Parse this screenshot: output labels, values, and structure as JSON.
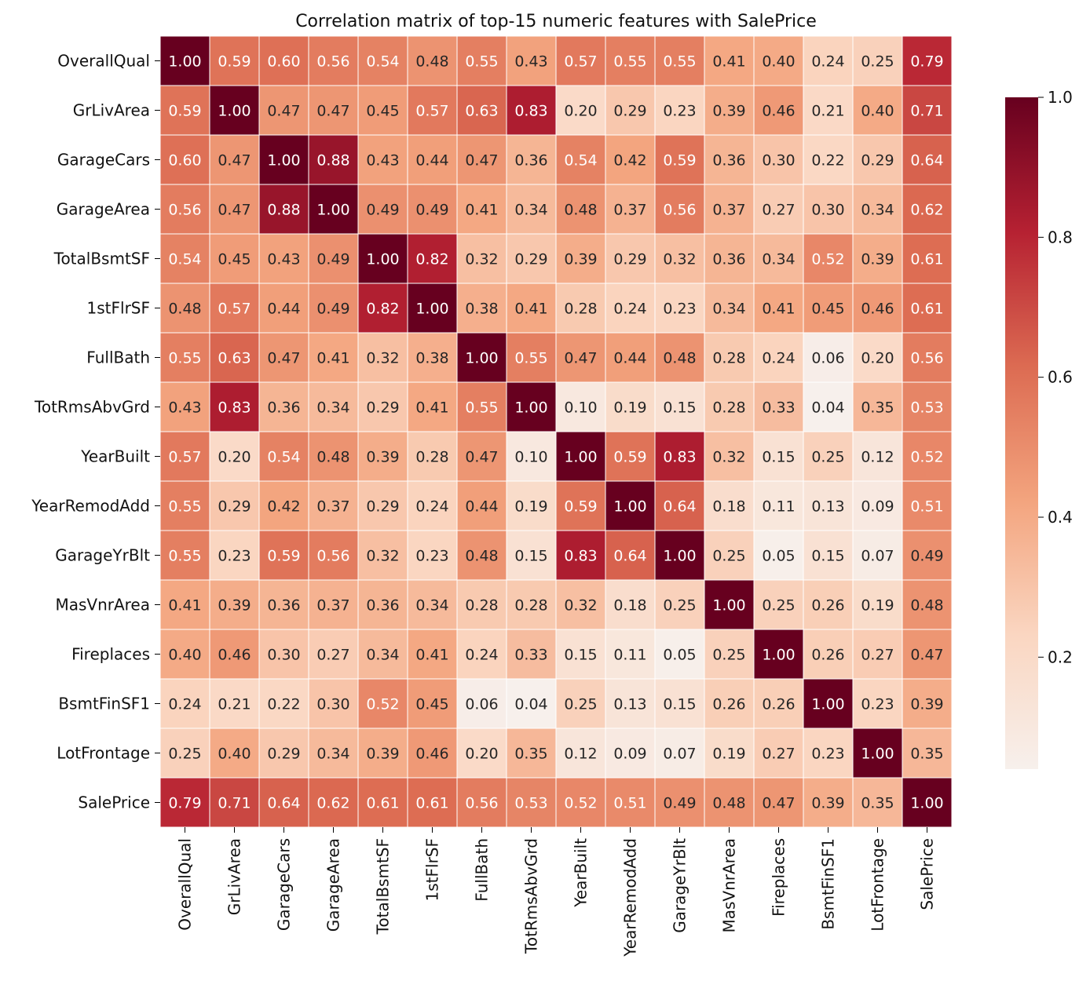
{
  "chart_data": {
    "type": "heatmap",
    "title": "Correlation matrix of top-15 numeric features with SalePrice",
    "labels": [
      "OverallQual",
      "GrLivArea",
      "GarageCars",
      "GarageArea",
      "TotalBsmtSF",
      "1stFlrSF",
      "FullBath",
      "TotRmsAbvGrd",
      "YearBuilt",
      "YearRemodAdd",
      "GarageYrBlt",
      "MasVnrArea",
      "Fireplaces",
      "BsmtFinSF1",
      "LotFrontage",
      "SalePrice"
    ],
    "matrix": [
      [
        1.0,
        0.59,
        0.6,
        0.56,
        0.54,
        0.48,
        0.55,
        0.43,
        0.57,
        0.55,
        0.55,
        0.41,
        0.4,
        0.24,
        0.25,
        0.79
      ],
      [
        0.59,
        1.0,
        0.47,
        0.47,
        0.45,
        0.57,
        0.63,
        0.83,
        0.2,
        0.29,
        0.23,
        0.39,
        0.46,
        0.21,
        0.4,
        0.71
      ],
      [
        0.6,
        0.47,
        1.0,
        0.88,
        0.43,
        0.44,
        0.47,
        0.36,
        0.54,
        0.42,
        0.59,
        0.36,
        0.3,
        0.22,
        0.29,
        0.64
      ],
      [
        0.56,
        0.47,
        0.88,
        1.0,
        0.49,
        0.49,
        0.41,
        0.34,
        0.48,
        0.37,
        0.56,
        0.37,
        0.27,
        0.3,
        0.34,
        0.62
      ],
      [
        0.54,
        0.45,
        0.43,
        0.49,
        1.0,
        0.82,
        0.32,
        0.29,
        0.39,
        0.29,
        0.32,
        0.36,
        0.34,
        0.52,
        0.39,
        0.61
      ],
      [
        0.48,
        0.57,
        0.44,
        0.49,
        0.82,
        1.0,
        0.38,
        0.41,
        0.28,
        0.24,
        0.23,
        0.34,
        0.41,
        0.45,
        0.46,
        0.61
      ],
      [
        0.55,
        0.63,
        0.47,
        0.41,
        0.32,
        0.38,
        1.0,
        0.55,
        0.47,
        0.44,
        0.48,
        0.28,
        0.24,
        0.06,
        0.2,
        0.56
      ],
      [
        0.43,
        0.83,
        0.36,
        0.34,
        0.29,
        0.41,
        0.55,
        1.0,
        0.1,
        0.19,
        0.15,
        0.28,
        0.33,
        0.04,
        0.35,
        0.53
      ],
      [
        0.57,
        0.2,
        0.54,
        0.48,
        0.39,
        0.28,
        0.47,
        0.1,
        1.0,
        0.59,
        0.83,
        0.32,
        0.15,
        0.25,
        0.12,
        0.52
      ],
      [
        0.55,
        0.29,
        0.42,
        0.37,
        0.29,
        0.24,
        0.44,
        0.19,
        0.59,
        1.0,
        0.64,
        0.18,
        0.11,
        0.13,
        0.09,
        0.51
      ],
      [
        0.55,
        0.23,
        0.59,
        0.56,
        0.32,
        0.23,
        0.48,
        0.15,
        0.83,
        0.64,
        1.0,
        0.25,
        0.05,
        0.15,
        0.07,
        0.49
      ],
      [
        0.41,
        0.39,
        0.36,
        0.37,
        0.36,
        0.34,
        0.28,
        0.28,
        0.32,
        0.18,
        0.25,
        1.0,
        0.25,
        0.26,
        0.19,
        0.48
      ],
      [
        0.4,
        0.46,
        0.3,
        0.27,
        0.34,
        0.41,
        0.24,
        0.33,
        0.15,
        0.11,
        0.05,
        0.25,
        1.0,
        0.26,
        0.27,
        0.47
      ],
      [
        0.24,
        0.21,
        0.22,
        0.3,
        0.52,
        0.45,
        0.06,
        0.04,
        0.25,
        0.13,
        0.15,
        0.26,
        0.26,
        1.0,
        0.23,
        0.39
      ],
      [
        0.25,
        0.4,
        0.29,
        0.34,
        0.39,
        0.46,
        0.2,
        0.35,
        0.12,
        0.09,
        0.07,
        0.19,
        0.27,
        0.23,
        1.0,
        0.35
      ],
      [
        0.79,
        0.71,
        0.64,
        0.62,
        0.61,
        0.61,
        0.56,
        0.53,
        0.52,
        0.51,
        0.49,
        0.48,
        0.47,
        0.39,
        0.35,
        1.0
      ]
    ],
    "color_range": [
      0.04,
      1.0
    ],
    "colormap": "RdBu_r (positive half)",
    "colorbar_ticks": [
      0.2,
      0.4,
      0.6,
      0.8,
      1.0
    ],
    "colorbar_tick_labels": [
      "0.2",
      "0.4",
      "0.6",
      "0.8",
      "1.0"
    ],
    "annotation_format": "2 decimals",
    "legend": "colorbar right"
  }
}
